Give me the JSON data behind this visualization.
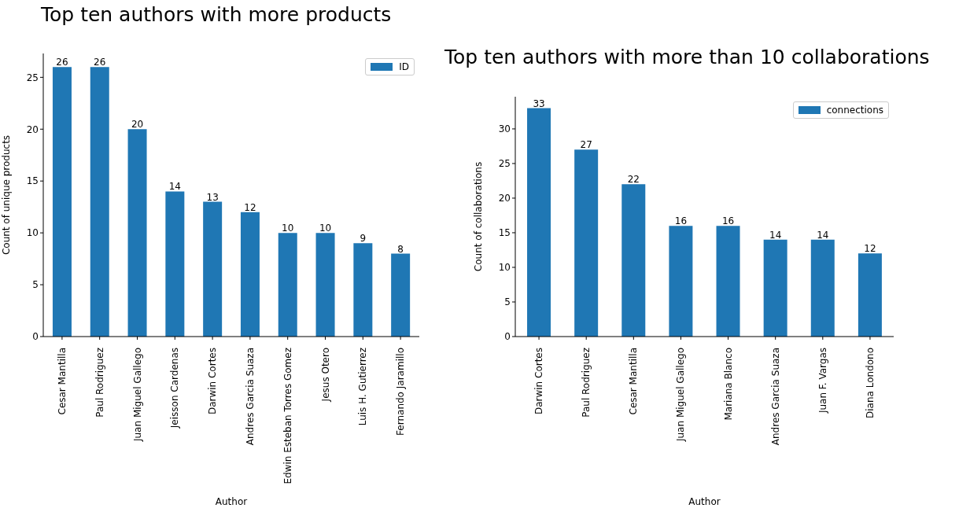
{
  "chart_data": [
    {
      "type": "bar",
      "title": "Top ten authors with more products",
      "xlabel": "Author",
      "ylabel": "Count of unique products",
      "categories": [
        "Cesar Mantilla",
        "Paul Rodriguez",
        "Juan Miguel Gallego",
        "Jeisson Cardenas",
        "Darwin Cortes",
        "Andres Garcia Suaza",
        "Edwin Esteban Torres Gomez",
        "Jesus Otero",
        "Luis H. Gutierrez",
        "Fernando Jaramillo"
      ],
      "series": [
        {
          "name": "ID",
          "color": "#1f77b4",
          "values": [
            26,
            26,
            20,
            14,
            13,
            12,
            10,
            10,
            9,
            8
          ]
        }
      ],
      "ylim": [
        0,
        27.3
      ],
      "yticks": [
        0,
        5,
        10,
        15,
        20,
        25
      ],
      "data_labels": true,
      "legend": "top right",
      "grid": false
    },
    {
      "type": "bar",
      "title": "Top ten authors with more than 10 collaborations",
      "xlabel": "Author",
      "ylabel": "Count of collaborations",
      "categories": [
        "Darwin Cortes",
        "Paul Rodriguez",
        "Cesar Mantilla",
        "Juan Miguel Gallego",
        "Mariana Blanco",
        "Andres Garcia Suaza",
        "Juan F. Vargas",
        "Diana Londono"
      ],
      "series": [
        {
          "name": "connections",
          "color": "#1f77b4",
          "values": [
            33,
            27,
            22,
            16,
            16,
            14,
            14,
            12
          ]
        }
      ],
      "ylim": [
        0,
        34.65
      ],
      "yticks": [
        0,
        5,
        10,
        15,
        20,
        25,
        30
      ],
      "data_labels": true,
      "legend": "top right",
      "grid": false
    }
  ]
}
